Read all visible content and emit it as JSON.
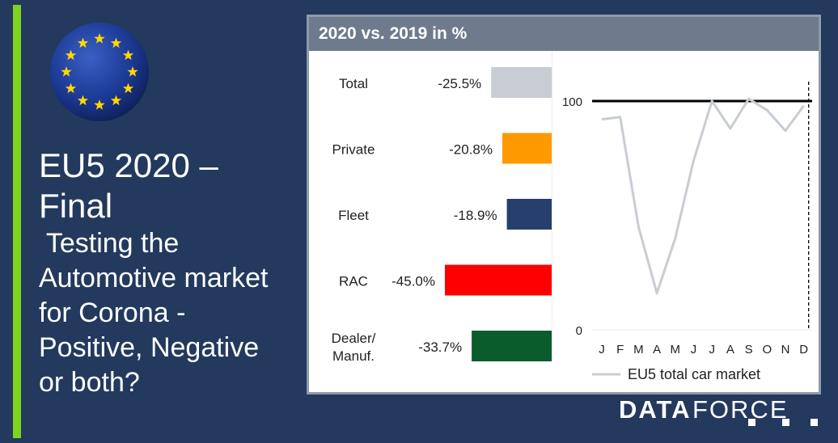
{
  "headline": {
    "title_line1": "EU5 2020 –",
    "title_line2": "Final",
    "subtitle_lines": [
      " Testing the",
      "Automotive market",
      "for Corona -",
      "Positive, Negative",
      "or both?"
    ]
  },
  "panel": {
    "title": "2020 vs. 2019 in %"
  },
  "chart_data": [
    {
      "type": "bar",
      "orientation": "horizontal",
      "categories": [
        "Total",
        "Private",
        "Fleet",
        "RAC",
        "Dealer/\nManuf."
      ],
      "values": [
        -25.5,
        -20.8,
        -18.9,
        -45.0,
        -33.7
      ],
      "value_labels": [
        "-25.5%",
        "-20.8%",
        "-18.9%",
        "-45.0%",
        "-33.7%"
      ],
      "colors": [
        "#c8ccd3",
        "#ff9900",
        "#263f6c",
        "#ff0000",
        "#0b5c2d"
      ]
    },
    {
      "type": "line",
      "x": [
        "J",
        "F",
        "M",
        "A",
        "M",
        "J",
        "J",
        "A",
        "S",
        "O",
        "N",
        "D"
      ],
      "series": [
        {
          "name": "EU5 total car market",
          "values": [
            92,
            93,
            45,
            16,
            40,
            74,
            100,
            88,
            101,
            96,
            87,
            98
          ],
          "color": "#c8ccd3"
        }
      ],
      "ylim": [
        0,
        100
      ],
      "yticks": [
        "0",
        "100"
      ],
      "reference_line": 100,
      "legend": "bottom"
    }
  ],
  "brand": {
    "name_part1": "DATA",
    "name_part2": "FORCE"
  },
  "colors": {
    "background": "#23395d",
    "accent": "#7ed321",
    "panel_header": "#6d7b8d"
  }
}
